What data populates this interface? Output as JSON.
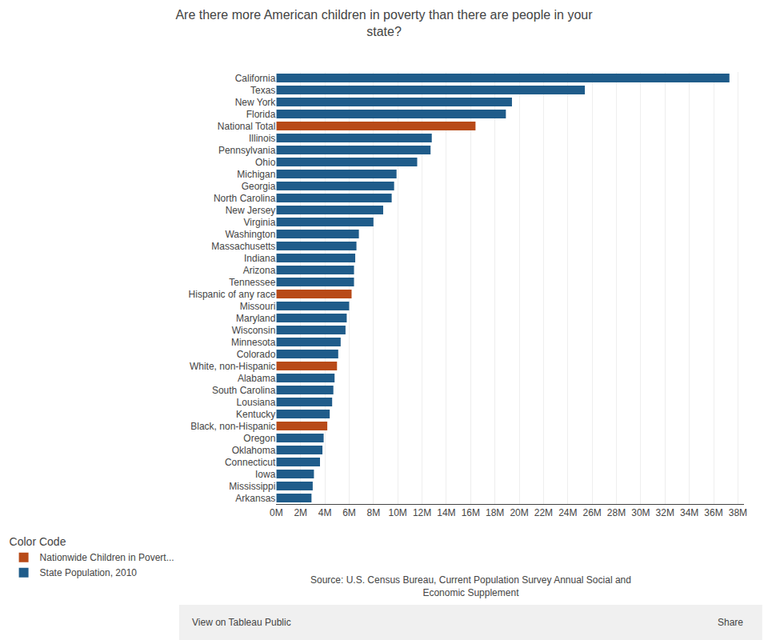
{
  "chart_data": {
    "type": "bar",
    "orientation": "horizontal",
    "title": "Are there more American children in poverty than there are people in your\nstate?",
    "categories": [
      "California",
      "Texas",
      "New York",
      "Florida",
      "National Total",
      "Illinois",
      "Pennsylvania",
      "Ohio",
      "Michigan",
      "Georgia",
      "North Carolina",
      "New Jersey",
      "Virginia",
      "Washington",
      "Massachusetts",
      "Indiana",
      "Arizona",
      "Tennessee",
      "Hispanic of any race",
      "Missouri",
      "Maryland",
      "Wisconsin",
      "Minnesota",
      "Colorado",
      "White, non-Hispanic",
      "Alabama",
      "South Carolina",
      "Lousiana",
      "Kentucky",
      "Black, non-Hispanic",
      "Oregon",
      "Oklahoma",
      "Connecticut",
      "Iowa",
      "Mississippi",
      "Arkansas"
    ],
    "series": [
      {
        "name": "Nationwide Children in Povert...",
        "color": "#b84a18",
        "values": [
          null,
          null,
          null,
          null,
          16400000,
          null,
          null,
          null,
          null,
          null,
          null,
          null,
          null,
          null,
          null,
          null,
          null,
          null,
          6200000,
          null,
          null,
          null,
          null,
          null,
          5000000,
          null,
          null,
          null,
          null,
          4200000,
          null,
          null,
          null,
          null,
          null,
          null
        ]
      },
      {
        "name": "State Population, 2010",
        "color": "#1f5c8a",
        "values": [
          37300000,
          25400000,
          19400000,
          18900000,
          null,
          12800000,
          12700000,
          11600000,
          9900000,
          9700000,
          9500000,
          8800000,
          8000000,
          6800000,
          6600000,
          6500000,
          6400000,
          6400000,
          null,
          6000000,
          5800000,
          5700000,
          5300000,
          5100000,
          null,
          4800000,
          4700000,
          4600000,
          4400000,
          null,
          3900000,
          3800000,
          3600000,
          3100000,
          3000000,
          2900000
        ]
      }
    ],
    "legend_title": "Color Code",
    "legend": "bottom left",
    "annotations": [
      {
        "text": "Source: U.S. Census Bureau, Current Population Survey Annual Social and\nEconomic Supplement"
      },
      {
        "text": "View on Tableau Public"
      },
      {
        "text": "Share"
      }
    ],
    "xlim": [
      0,
      38500000
    ],
    "xticks": [
      {
        "value": 0,
        "label": "0M"
      },
      {
        "value": 2000000,
        "label": "2M"
      },
      {
        "value": 4000000,
        "label": "4M"
      },
      {
        "value": 6000000,
        "label": "6M"
      },
      {
        "value": 8000000,
        "label": "8M"
      },
      {
        "value": 10000000,
        "label": "10M"
      },
      {
        "value": 12000000,
        "label": "12M"
      },
      {
        "value": 14000000,
        "label": "14M"
      },
      {
        "value": 16000000,
        "label": "16M"
      },
      {
        "value": 18000000,
        "label": "18M"
      },
      {
        "value": 20000000,
        "label": "20M"
      },
      {
        "value": 22000000,
        "label": "22M"
      },
      {
        "value": 24000000,
        "label": "24M"
      },
      {
        "value": 26000000,
        "label": "26M"
      },
      {
        "value": 28000000,
        "label": "28M"
      },
      {
        "value": 30000000,
        "label": "30M"
      },
      {
        "value": 32000000,
        "label": "32M"
      },
      {
        "value": 34000000,
        "label": "34M"
      },
      {
        "value": 36000000,
        "label": "36M"
      },
      {
        "value": 38000000,
        "label": "38M"
      }
    ],
    "grid": true
  }
}
